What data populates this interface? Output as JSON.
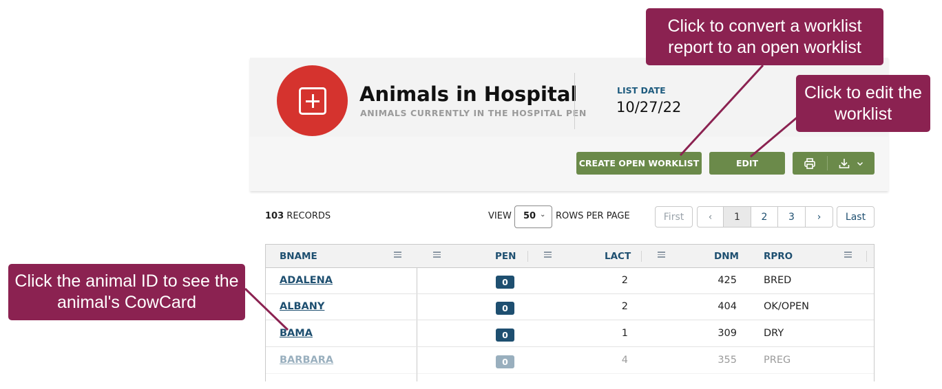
{
  "header": {
    "icon": "plus-square-icon",
    "badge_color": "#d5332e",
    "title": "Animals in Hospital",
    "subtitle": "ANIMALS CURRENTLY IN THE HOSPITAL PEN",
    "list_date_label": "LIST DATE",
    "list_date_value": "10/27/22"
  },
  "actions": {
    "create_open_worklist": "CREATE OPEN WORKLIST",
    "edit": "EDIT",
    "print_icon": "printer-icon",
    "download_icon": "download-icon",
    "dropdown_icon": "chevron-down-icon",
    "button_color": "#6b8a4a"
  },
  "pager": {
    "records_count": "103",
    "records_label": "RECORDS",
    "view_label": "VIEW",
    "rows_value": "50",
    "rows_label": "ROWS PER PAGE",
    "first": "First",
    "prev": "‹",
    "pages": [
      "1",
      "2",
      "3"
    ],
    "current_page": "1",
    "next": "›",
    "last": "Last"
  },
  "table": {
    "columns": [
      "BNAME",
      "PEN",
      "LACT",
      "DNM",
      "RPRO"
    ],
    "rows": [
      {
        "bname": "ADALENA",
        "pen": "0",
        "lact": "2",
        "dnm": "425",
        "rpro": "BRED"
      },
      {
        "bname": "ALBANY",
        "pen": "0",
        "lact": "2",
        "dnm": "404",
        "rpro": "OK/OPEN"
      },
      {
        "bname": "BAMA",
        "pen": "0",
        "lact": "1",
        "dnm": "309",
        "rpro": "DRY"
      },
      {
        "bname": "BARBARA",
        "pen": "0",
        "lact": "4",
        "dnm": "355",
        "rpro": "PREG"
      }
    ]
  },
  "callouts": {
    "convert": "Click to convert a worklist report to an open worklist",
    "edit": "Click to edit the worklist",
    "animal": "Click the animal ID to see the animal's CowCard",
    "color": "#8b2251"
  }
}
